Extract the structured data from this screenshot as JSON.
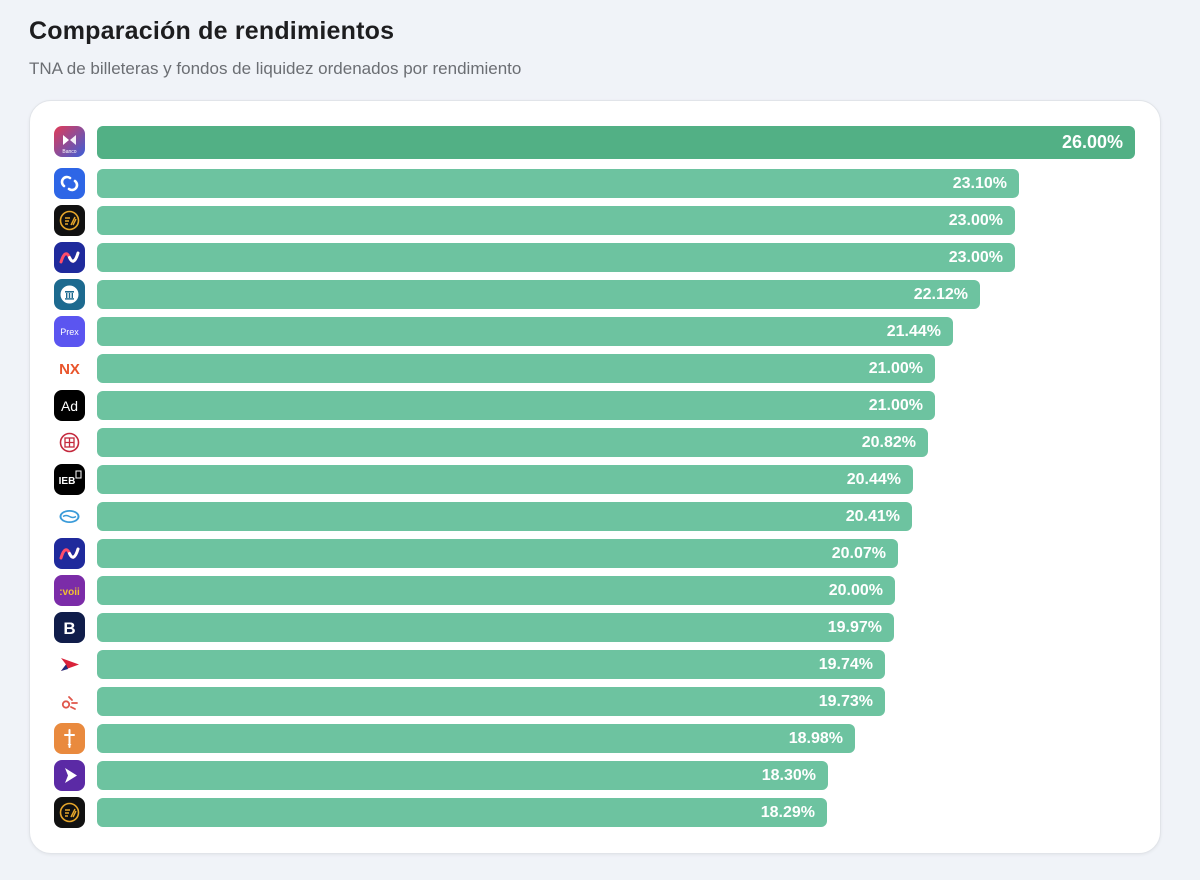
{
  "header": {
    "title": "Comparación de rendimientos",
    "subtitle": "TNA de billeteras y fondos de liquidez ordenados por rendimiento"
  },
  "chart_data": {
    "type": "bar",
    "orientation": "horizontal",
    "title": "Comparación de rendimientos",
    "subtitle": "TNA de billeteras y fondos de liquidez ordenados por rendimiento",
    "xlabel": "",
    "ylabel": "",
    "xlim": [
      0,
      26
    ],
    "categories": [
      "carrefour-banco",
      "uala",
      "fiwind-1",
      "naranja-x-style-1",
      "banco-bna",
      "prex",
      "nx",
      "adcap",
      "bbva",
      "ieb",
      "mercado-pago",
      "naranja-x-style-2",
      "voii",
      "belo",
      "brubank",
      "lemon",
      "personal-pay",
      "rebanking",
      "fiwind-2"
    ],
    "values": [
      26.0,
      23.1,
      23.0,
      23.0,
      22.12,
      21.44,
      21.0,
      21.0,
      20.82,
      20.44,
      20.41,
      20.07,
      20.0,
      19.97,
      19.74,
      19.73,
      18.98,
      18.3,
      18.29
    ],
    "value_labels": [
      "26.00%",
      "23.10%",
      "23.00%",
      "23.00%",
      "22.12%",
      "21.44%",
      "21.00%",
      "21.00%",
      "20.82%",
      "20.44%",
      "20.41%",
      "20.07%",
      "20.00%",
      "19.97%",
      "19.74%",
      "19.73%",
      "18.98%",
      "18.30%",
      "18.29%"
    ],
    "logo_text": [
      "Banco",
      "",
      "",
      "",
      "",
      "Prex",
      "NX",
      "Ad",
      "",
      "IEB",
      "",
      "",
      ":voii",
      "B",
      "",
      "",
      "",
      "",
      ""
    ],
    "colors": {
      "top_bar": "#52b085",
      "bar": "#6dc3a0"
    }
  }
}
